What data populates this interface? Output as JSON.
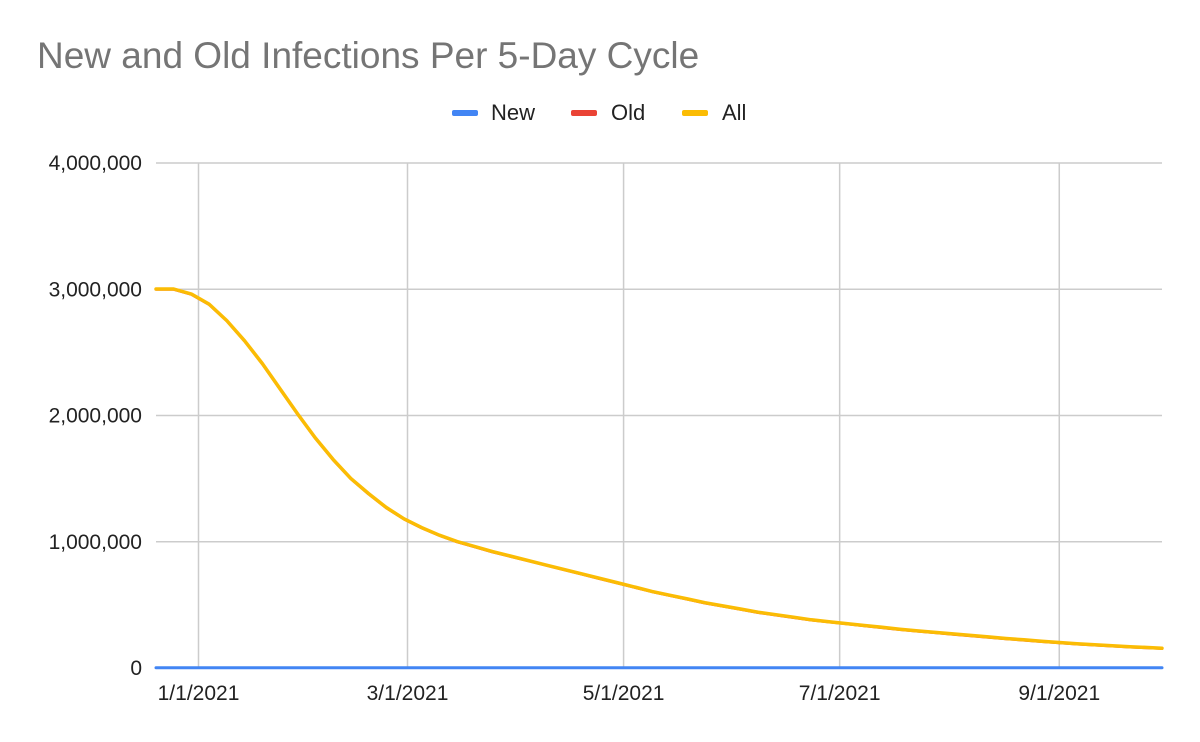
{
  "chart_data": {
    "type": "line",
    "title": "New and Old Infections Per 5-Day Cycle",
    "xlabel": "",
    "ylabel": "",
    "legend_position": "top",
    "grid": true,
    "ylim": [
      0,
      4000000
    ],
    "xlim": [
      "2020-12-20",
      "2021-09-30"
    ],
    "y_ticks": [
      {
        "value": 0,
        "label": "0"
      },
      {
        "value": 1000000,
        "label": "1,000,000"
      },
      {
        "value": 2000000,
        "label": "2,000,000"
      },
      {
        "value": 3000000,
        "label": "3,000,000"
      },
      {
        "value": 4000000,
        "label": "4,000,000"
      }
    ],
    "x_ticks": [
      {
        "date": "2021-01-01",
        "label": "1/1/2021"
      },
      {
        "date": "2021-03-01",
        "label": "3/1/2021"
      },
      {
        "date": "2021-05-01",
        "label": "5/1/2021"
      },
      {
        "date": "2021-07-01",
        "label": "7/1/2021"
      },
      {
        "date": "2021-09-01",
        "label": "9/1/2021"
      }
    ],
    "x": [
      "2020-12-20",
      "2020-12-25",
      "2020-12-30",
      "2021-01-04",
      "2021-01-09",
      "2021-01-14",
      "2021-01-19",
      "2021-01-24",
      "2021-01-29",
      "2021-02-03",
      "2021-02-08",
      "2021-02-13",
      "2021-02-18",
      "2021-02-23",
      "2021-02-28",
      "2021-03-05",
      "2021-03-10",
      "2021-03-15",
      "2021-03-20",
      "2021-03-25",
      "2021-03-30",
      "2021-04-04",
      "2021-04-09",
      "2021-04-14",
      "2021-04-19",
      "2021-04-24",
      "2021-04-29",
      "2021-05-04",
      "2021-05-09",
      "2021-05-14",
      "2021-05-19",
      "2021-05-24",
      "2021-05-29",
      "2021-06-03",
      "2021-06-08",
      "2021-06-13",
      "2021-06-18",
      "2021-06-23",
      "2021-06-28",
      "2021-07-03",
      "2021-07-08",
      "2021-07-13",
      "2021-07-18",
      "2021-07-23",
      "2021-07-28",
      "2021-08-02",
      "2021-08-07",
      "2021-08-12",
      "2021-08-17",
      "2021-08-22",
      "2021-08-27",
      "2021-09-01",
      "2021-09-06",
      "2021-09-11",
      "2021-09-16",
      "2021-09-21",
      "2021-09-26",
      "2021-09-30"
    ],
    "series": [
      {
        "name": "New",
        "color": "#4285f4",
        "values": [
          2000,
          2000,
          2000,
          2000,
          2000,
          2000,
          2000,
          2000,
          2000,
          2000,
          2000,
          2000,
          2000,
          2000,
          2000,
          2000,
          2000,
          2000,
          2000,
          2000,
          2000,
          2000,
          2000,
          2000,
          2000,
          2000,
          2000,
          2000,
          2000,
          2000,
          2000,
          2000,
          2000,
          2000,
          2000,
          2000,
          2000,
          2000,
          2000,
          2000,
          2000,
          2000,
          2000,
          2000,
          2000,
          2000,
          2000,
          2000,
          2000,
          2000,
          2000,
          2000,
          2000,
          2000,
          2000,
          2000,
          2000,
          2000
        ]
      },
      {
        "name": "Old",
        "color": "#ea4335",
        "values": [
          3000000,
          3000000,
          2960000,
          2880000,
          2750000,
          2590000,
          2410000,
          2210000,
          2010000,
          1820000,
          1650000,
          1500000,
          1380000,
          1270000,
          1180000,
          1110000,
          1050000,
          1000000,
          960000,
          920000,
          885000,
          850000,
          815000,
          780000,
          745000,
          710000,
          675000,
          640000,
          605000,
          575000,
          545000,
          515000,
          490000,
          465000,
          440000,
          420000,
          400000,
          380000,
          365000,
          350000,
          335000,
          320000,
          305000,
          292000,
          280000,
          268000,
          256000,
          244000,
          232000,
          221000,
          210000,
          200000,
          190000,
          182000,
          174000,
          166000,
          160000,
          155000
        ]
      },
      {
        "name": "All",
        "color": "#fbbc04",
        "values": [
          3002000,
          3002000,
          2962000,
          2882000,
          2752000,
          2592000,
          2412000,
          2212000,
          2012000,
          1822000,
          1652000,
          1502000,
          1382000,
          1272000,
          1182000,
          1112000,
          1052000,
          1002000,
          962000,
          922000,
          887000,
          852000,
          817000,
          782000,
          747000,
          712000,
          677000,
          642000,
          607000,
          577000,
          547000,
          517000,
          492000,
          467000,
          442000,
          422000,
          402000,
          382000,
          367000,
          352000,
          337000,
          322000,
          307000,
          294000,
          282000,
          270000,
          258000,
          246000,
          234000,
          223000,
          212000,
          202000,
          192000,
          184000,
          176000,
          168000,
          162000,
          157000
        ]
      }
    ]
  }
}
